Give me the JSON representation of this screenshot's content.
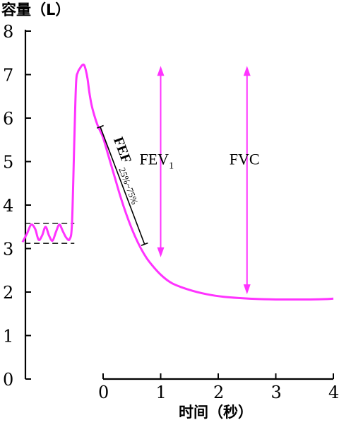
{
  "chart_data": {
    "type": "line",
    "title": "",
    "ylabel": "容量（L）",
    "xlabel": "时间（秒）",
    "ylim": [
      0,
      8
    ],
    "xlim": [
      -1.4,
      4
    ],
    "y_ticks": [
      "0",
      "1",
      "2",
      "3",
      "4",
      "5",
      "6",
      "7",
      "8"
    ],
    "x_ticks": [
      "0",
      "1",
      "2",
      "3",
      "4"
    ],
    "grid": false,
    "series": [
      {
        "color": "#ff33ff",
        "x": [
          -1.4,
          -1.32,
          -1.25,
          -1.18,
          -1.12,
          -1.06,
          -1.0,
          -0.94,
          -0.88,
          -0.82,
          -0.76,
          -0.7,
          -0.64,
          -0.58,
          -0.54,
          -0.5,
          -0.47,
          -0.44,
          -0.4,
          -0.36,
          -0.33,
          -0.3,
          -0.27,
          -0.24,
          -0.2,
          -0.15,
          -0.1,
          -0.05,
          0.0,
          0.1,
          0.2,
          0.3,
          0.4,
          0.5,
          0.6,
          0.7,
          0.8,
          1.0,
          1.2,
          1.5,
          1.8,
          2.1,
          2.4,
          2.7,
          3.0,
          3.3,
          3.6,
          3.9,
          4.0
        ],
        "y": [
          3.15,
          3.35,
          3.55,
          3.45,
          3.2,
          3.3,
          3.5,
          3.3,
          3.18,
          3.38,
          3.55,
          3.4,
          3.25,
          3.22,
          3.6,
          5.5,
          6.8,
          7.05,
          7.15,
          7.22,
          7.22,
          7.1,
          6.9,
          6.6,
          6.3,
          6.05,
          5.85,
          5.7,
          5.55,
          5.1,
          4.65,
          4.2,
          3.8,
          3.45,
          3.15,
          2.9,
          2.7,
          2.4,
          2.2,
          2.05,
          1.95,
          1.89,
          1.86,
          1.84,
          1.83,
          1.83,
          1.83,
          1.84,
          1.85
        ]
      }
    ],
    "annotations": {
      "fev1": {
        "label": "FEV",
        "subscript": "1",
        "x": 1.0,
        "y_top": 7.2,
        "y_bottom": 2.8
      },
      "fvc": {
        "label": "FVC",
        "x": 2.5,
        "y_top": 7.2,
        "y_bottom": 1.95
      },
      "fef": {
        "label": "FEF",
        "subscript": "25%~75%",
        "x_start": -0.05,
        "y_start": 5.8,
        "x_end": 0.72,
        "y_end": 3.1
      },
      "baseline_dash_high": 3.58,
      "baseline_dash_low": 3.12
    }
  }
}
